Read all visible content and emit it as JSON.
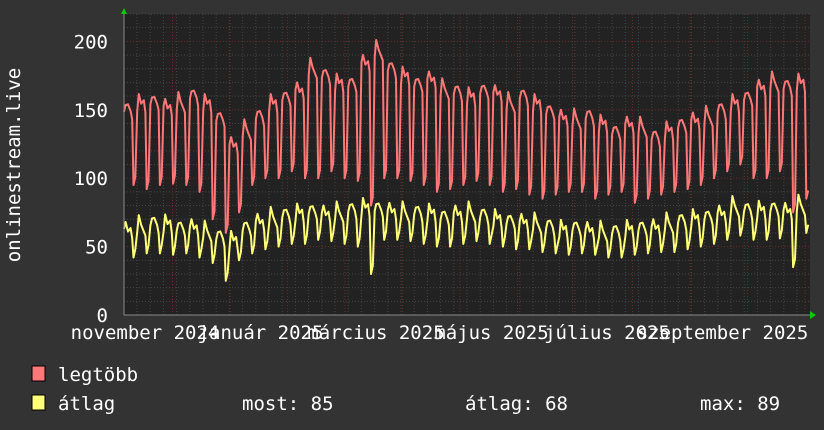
{
  "chart_data": {
    "type": "line",
    "ylabel": "onlinestream.live",
    "xlim": [
      "2024-10-27",
      "2025-10-27"
    ],
    "ylim": [
      0,
      220
    ],
    "yticks": [
      0,
      50,
      100,
      150,
      200
    ],
    "xtick_labels": [
      "november 2024",
      "január 2025",
      "március 2025",
      "május 2025",
      "július 2025",
      "szeptember 2025"
    ],
    "grid": true,
    "legend_placement": "bottom-left",
    "background": "#333333",
    "plot_background": "#222222",
    "series": [
      {
        "name": "legtöbb",
        "color": "#ff7777",
        "peaks": [
          155,
          160,
          162,
          158,
          160,
          165,
          160,
          150,
          130,
          140,
          150,
          160,
          165,
          170,
          185,
          180,
          175,
          175,
          190,
          198,
          185,
          180,
          175,
          178,
          170,
          168,
          165,
          170,
          168,
          160,
          165,
          160,
          155,
          150,
          148,
          150,
          145,
          140,
          145,
          142,
          135,
          140,
          145,
          148,
          150,
          155,
          160,
          165,
          172,
          175,
          172,
          175
        ],
        "troughs": [
          95,
          92,
          95,
          96,
          95,
          90,
          70,
          60,
          75,
          95,
          100,
          100,
          105,
          100,
          100,
          105,
          100,
          98,
          80,
          100,
          100,
          98,
          95,
          90,
          92,
          95,
          98,
          95,
          90,
          92,
          88,
          85,
          88,
          90,
          90,
          85,
          88,
          90,
          82,
          85,
          88,
          90,
          92,
          95,
          100,
          105,
          110,
          100,
          100,
          105,
          75,
          85
        ]
      },
      {
        "name": "átlag",
        "color": "#ffff77",
        "peaks": [
          68,
          70,
          72,
          72,
          70,
          70,
          66,
          62,
          60,
          70,
          74,
          76,
          78,
          80,
          82,
          80,
          80,
          82,
          84,
          84,
          82,
          80,
          80,
          80,
          78,
          80,
          80,
          78,
          76,
          75,
          74,
          72,
          70,
          68,
          70,
          68,
          66,
          66,
          68,
          70,
          70,
          72,
          74,
          76,
          78,
          80,
          84,
          82,
          82,
          84,
          82,
          85
        ],
        "troughs": [
          42,
          45,
          45,
          44,
          45,
          42,
          38,
          25,
          40,
          45,
          48,
          50,
          52,
          52,
          55,
          54,
          52,
          50,
          30,
          55,
          55,
          54,
          52,
          50,
          50,
          52,
          54,
          52,
          50,
          48,
          48,
          46,
          45,
          44,
          45,
          44,
          42,
          42,
          44,
          45,
          46,
          46,
          48,
          50,
          52,
          55,
          58,
          55,
          55,
          56,
          35,
          60
        ]
      }
    ]
  },
  "legend": {
    "items": [
      {
        "label": "legtöbb",
        "color": "#ff7777"
      },
      {
        "label": "átlag",
        "color": "#ffff77"
      }
    ],
    "stats": {
      "now": "most: 85",
      "avg": "átlag: 68",
      "max": "max: 89"
    }
  }
}
